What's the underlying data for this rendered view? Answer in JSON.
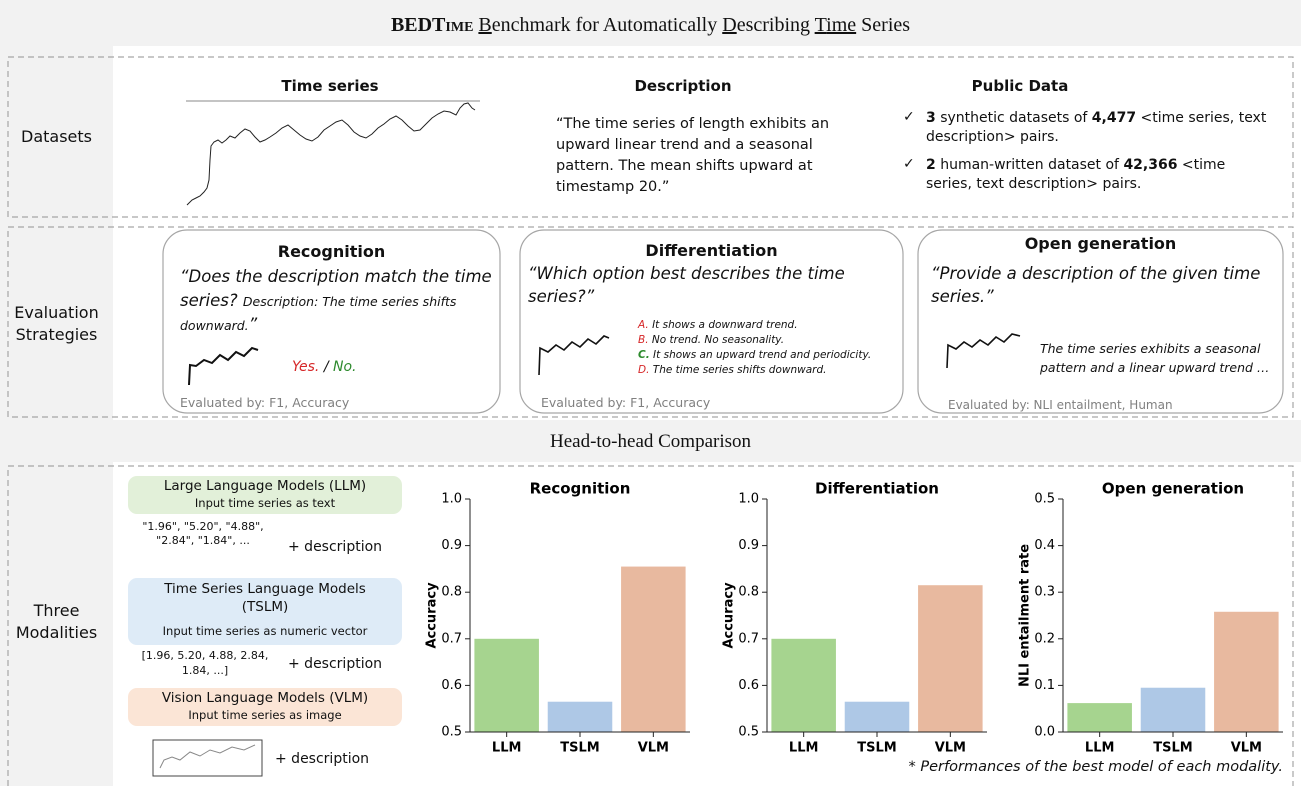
{
  "header": {
    "logo": "BEDTime",
    "segments": [
      "B",
      "enchmark for Automatically ",
      "D",
      "escribing ",
      "T",
      "ime",
      " Series"
    ]
  },
  "rows": [
    "Datasets",
    "Evaluation Strategies",
    "Three Modalities"
  ],
  "datasets": {
    "time_series_title": "Time series",
    "description_title": "Description",
    "description": "“The time series of length exhibits an upward linear trend and a seasonal pattern. The mean shifts upward at timestamp 20.”",
    "public_data_title": "Public Data",
    "bullet": "✓",
    "public_data": [
      [
        "3",
        " synthetic datasets of ",
        "4,477",
        " <time series, text description> pairs."
      ],
      [
        "2",
        " human-written dataset of ",
        "42,366",
        " <time series, text description> pairs."
      ]
    ]
  },
  "strategies": [
    {
      "title": "Recognition",
      "prompt": "“Does the description match the time series?",
      "prompt_detail": "Description: The time series shifts downward.",
      "prompt_end": "”",
      "answer": [
        "Yes.",
        " / ",
        "No."
      ],
      "evaluated_by": "Evaluated by:  F1, Accuracy"
    },
    {
      "title": "Differentiation",
      "prompt": "“Which option best describes the time series?”",
      "options": [
        [
          "A.",
          "It shows a downward trend."
        ],
        [
          "B.",
          "No trend. No seasonality."
        ],
        [
          "C.",
          "It shows an upward trend and periodicity."
        ],
        [
          "D.",
          "The time series shifts downward."
        ]
      ],
      "evaluated_by": "Evaluated by:  F1, Accuracy"
    },
    {
      "title": "Open generation",
      "prompt": "“Provide a description of the given time series.”",
      "output": "The time series exhibits a seasonal pattern and a linear upward trend  …",
      "evaluated_by": "Evaluated by:  NLI entailment, Human"
    }
  ],
  "comparison_title": "Head-to-head Comparison",
  "modalities": [
    {
      "title": "Large Language Models (LLM)",
      "subtitle": "Input time series as text",
      "example": "\"1.96\", \"5.20\", \"4.88\", \"2.84\", \"1.84\", ...",
      "suffix": "+ description"
    },
    {
      "title": "Time Series Language Models (TSLM)",
      "subtitle": "Input time series as numeric vector",
      "example": "[1.96, 5.20, 4.88, 2.84, 1.84, ...]",
      "suffix": "+ description"
    },
    {
      "title": "Vision Language Models (VLM)",
      "subtitle": "Input time series as image",
      "suffix": "+ description"
    }
  ],
  "chart_data": [
    {
      "type": "bar",
      "title": "Recognition",
      "ylabel": "Accuracy",
      "categories": [
        "LLM",
        "TSLM",
        "VLM"
      ],
      "values": [
        0.7,
        0.565,
        0.855
      ],
      "colors": [
        "#a6d48f",
        "#aec8e6",
        "#e8b99f"
      ],
      "ylim": [
        0.5,
        1.0
      ],
      "yticks": [
        0.5,
        0.6,
        0.7,
        0.8,
        0.9,
        {
          "value": 1,
          "label": "1.0"
        }
      ]
    },
    {
      "type": "bar",
      "title": "Differentiation",
      "ylabel": "Accuracy",
      "categories": [
        "LLM",
        "TSLM",
        "VLM"
      ],
      "values": [
        0.7,
        0.565,
        0.815
      ],
      "colors": [
        "#a6d48f",
        "#aec8e6",
        "#e8b99f"
      ],
      "ylim": [
        0.5,
        1.0
      ],
      "yticks": [
        0.5,
        0.6,
        0.7,
        0.8,
        0.9,
        {
          "value": 1,
          "label": "1.0"
        }
      ]
    },
    {
      "type": "bar",
      "title": "Open generation",
      "ylabel": "NLI entailment rate",
      "categories": [
        "LLM",
        "TSLM",
        "VLM"
      ],
      "values": [
        0.062,
        0.095,
        0.258
      ],
      "colors": [
        "#a6d48f",
        "#aec8e6",
        "#e8b99f"
      ],
      "ylim": [
        0,
        0.5
      ],
      "yticks": [
        {
          "value": 0,
          "label": "0.0"
        },
        0.1,
        0.2,
        0.3,
        0.4,
        0.5
      ]
    }
  ],
  "footnote": "* Performances of the best model of each modality."
}
